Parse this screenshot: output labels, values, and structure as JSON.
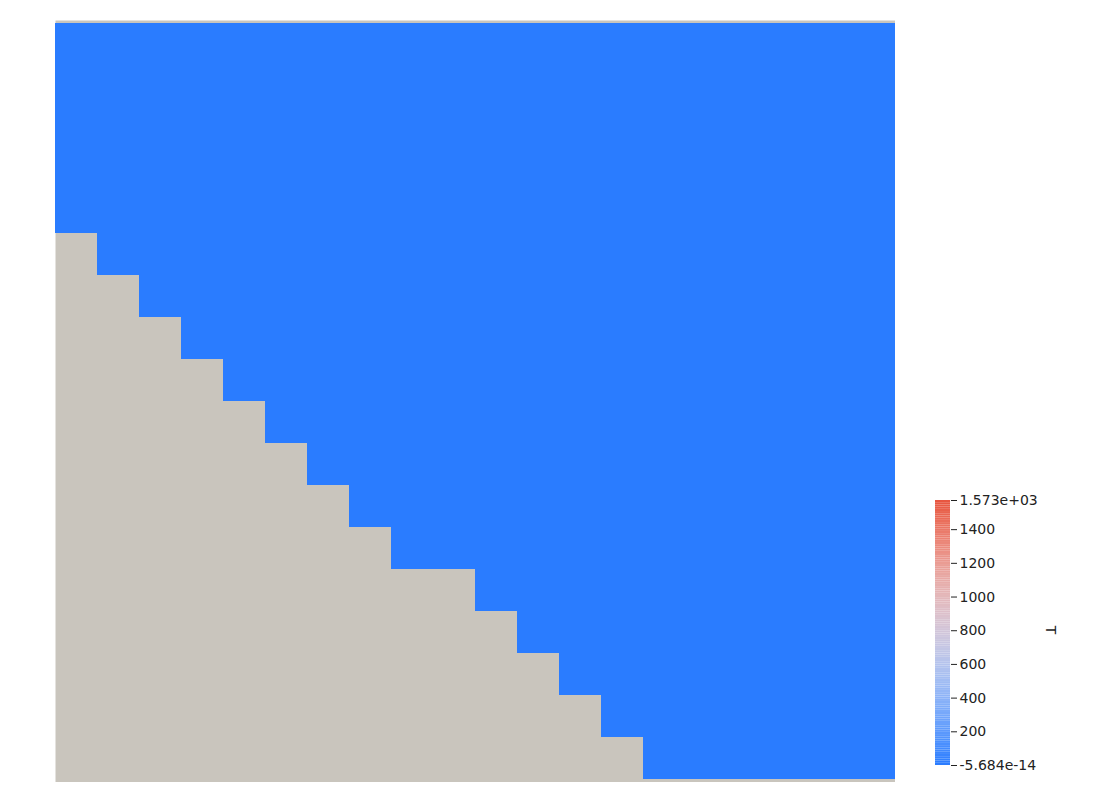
{
  "chart_data": {
    "type": "heatmap",
    "tick_labels": false,
    "cells": [
      [
        0,
        0,
        0,
        0,
        0,
        0,
        0,
        0,
        0,
        0,
        0,
        0,
        0,
        0,
        0,
        0,
        0,
        0,
        0,
        0
      ],
      [
        0,
        0,
        0,
        0,
        0,
        0,
        0,
        0,
        0,
        0,
        0,
        0,
        0,
        0,
        0,
        0,
        0,
        0,
        0,
        0
      ],
      [
        0,
        0,
        0,
        0,
        0,
        0,
        0,
        0,
        0,
        0,
        0,
        0,
        0,
        0,
        0,
        0,
        0,
        0,
        0,
        0
      ],
      [
        0,
        0,
        0,
        0,
        0,
        0,
        0,
        0,
        0,
        0,
        0,
        0,
        0,
        0,
        0,
        0,
        0,
        0,
        0,
        0
      ],
      [
        0,
        0,
        0,
        0,
        0,
        0,
        0,
        0,
        0,
        0,
        0,
        0,
        0,
        0,
        0,
        0,
        0,
        0,
        0,
        0
      ],
      [
        null,
        0,
        0,
        0,
        0,
        0,
        0,
        0,
        0,
        0,
        0,
        0,
        0,
        0,
        0,
        0,
        0,
        0,
        0,
        0
      ],
      [
        null,
        null,
        0,
        0,
        0,
        0,
        0,
        0,
        0,
        0,
        0,
        0,
        0,
        0,
        0,
        0,
        0,
        0,
        0,
        0
      ],
      [
        null,
        null,
        null,
        0,
        0,
        0,
        0,
        0,
        0,
        0,
        0,
        0,
        0,
        0,
        0,
        0,
        0,
        0,
        0,
        0
      ],
      [
        null,
        null,
        null,
        null,
        0,
        0,
        0,
        0,
        0,
        0,
        0,
        0,
        0,
        0,
        0,
        0,
        0,
        0,
        0,
        0
      ],
      [
        null,
        null,
        null,
        null,
        null,
        0,
        0,
        0,
        0,
        0,
        0,
        0,
        0,
        0,
        0,
        0,
        0,
        0,
        0,
        0
      ],
      [
        null,
        null,
        null,
        null,
        null,
        null,
        0,
        0,
        0,
        0,
        0,
        0,
        0,
        0,
        0,
        0,
        0,
        0,
        0,
        0
      ],
      [
        null,
        null,
        null,
        null,
        null,
        null,
        null,
        0,
        0,
        0,
        0,
        0,
        0,
        0,
        0,
        0,
        0,
        0,
        0,
        0
      ],
      [
        null,
        null,
        null,
        null,
        null,
        null,
        null,
        null,
        0,
        0,
        0,
        0,
        0,
        0,
        0,
        0,
        0,
        0,
        0,
        0
      ],
      [
        null,
        null,
        null,
        null,
        null,
        null,
        null,
        null,
        null,
        null,
        0,
        0,
        0,
        0,
        0,
        0,
        0,
        0,
        0,
        0
      ],
      [
        null,
        null,
        null,
        null,
        null,
        null,
        null,
        null,
        null,
        null,
        null,
        0,
        0,
        0,
        0,
        0,
        0,
        0,
        0,
        0
      ],
      [
        null,
        null,
        null,
        null,
        null,
        null,
        null,
        null,
        null,
        null,
        null,
        null,
        0,
        0,
        0,
        0,
        0,
        0,
        0,
        0
      ],
      [
        null,
        null,
        null,
        null,
        null,
        null,
        null,
        null,
        null,
        null,
        null,
        null,
        null,
        0,
        0,
        0,
        0,
        0,
        0,
        0
      ],
      [
        null,
        null,
        null,
        null,
        null,
        null,
        null,
        null,
        null,
        null,
        null,
        null,
        null,
        null,
        0,
        0,
        0,
        0,
        0,
        0
      ]
    ],
    "colorbar": {
      "label": "T",
      "range": [
        -5.684e-14,
        1573
      ],
      "ticks": [
        {
          "value": -5.684e-14,
          "label": "-5.684e-14"
        },
        200,
        400,
        600,
        800,
        1000,
        1200,
        1400,
        {
          "value": 1573,
          "label": "1.573e+03"
        }
      ]
    }
  }
}
